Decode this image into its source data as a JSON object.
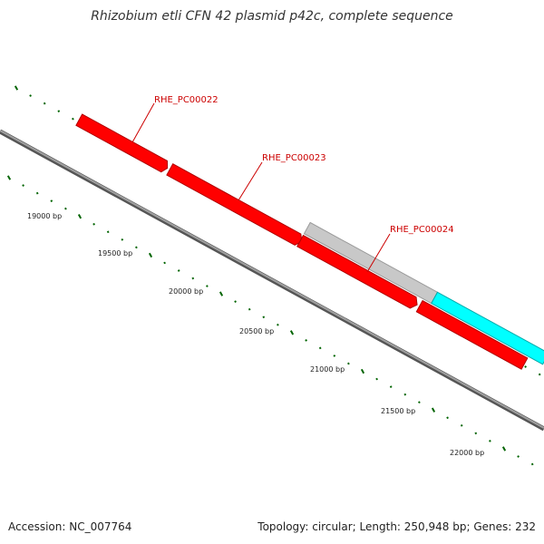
{
  "title": "Rhizobium etli CFN 42 plasmid p42c, complete sequence",
  "footer": {
    "accession": "Accession: NC_007764",
    "topology": "Topology: circular; Length: 250,948 bp; Genes: 232"
  },
  "colors": {
    "forward_gene": "#ff0000",
    "other_gene": "#ff8c00",
    "rna_gene": "#c8c8c8",
    "cyan_feature": "#00ffff",
    "backbone": "#808080",
    "tick": "#006400",
    "label": "#cc0000"
  },
  "gene_labels": [
    {
      "id": "RHE_PC00022",
      "text": "RHE_PC00022"
    },
    {
      "id": "RHE_PC00023",
      "text": "RHE_PC00023"
    },
    {
      "id": "RHE_PC00024",
      "text": "RHE_PC00024"
    }
  ],
  "scale_labels": [
    {
      "text": "19000 bp"
    },
    {
      "text": "19500 bp"
    },
    {
      "text": "20000 bp"
    },
    {
      "text": "20500 bp"
    },
    {
      "text": "21000 bp"
    },
    {
      "text": "21500 bp"
    },
    {
      "text": "22000 bp"
    }
  ]
}
